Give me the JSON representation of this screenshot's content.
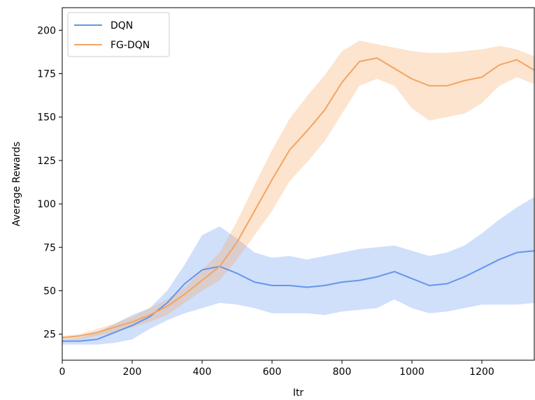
{
  "chart_data": {
    "type": "line",
    "xlabel": "Itr",
    "ylabel": "Average Rewards",
    "xlim": [
      0,
      1350
    ],
    "ylim": [
      10,
      213
    ],
    "xticks": [
      0,
      200,
      400,
      600,
      800,
      1000,
      1200
    ],
    "yticks": [
      25,
      50,
      75,
      100,
      125,
      150,
      175,
      200
    ],
    "grid": false,
    "legend_position": "top-left",
    "series": [
      {
        "name": "DQN",
        "color": "#6495ED",
        "band_color": "#6495ED",
        "x": [
          0,
          50,
          100,
          150,
          200,
          250,
          300,
          350,
          400,
          450,
          500,
          550,
          600,
          650,
          700,
          750,
          800,
          850,
          900,
          950,
          1000,
          1050,
          1100,
          1150,
          1200,
          1250,
          1300,
          1350
        ],
        "mean": [
          21,
          21,
          22,
          26,
          30,
          35,
          43,
          54,
          62,
          64,
          60,
          55,
          53,
          53,
          52,
          53,
          55,
          56,
          58,
          61,
          57,
          53,
          54,
          58,
          63,
          68,
          72,
          73
        ],
        "upper": [
          22,
          23,
          26,
          31,
          36,
          40,
          50,
          65,
          82,
          87,
          80,
          72,
          69,
          70,
          68,
          70,
          72,
          74,
          75,
          76,
          73,
          70,
          72,
          76,
          83,
          91,
          98,
          104
        ],
        "lower": [
          19,
          19,
          19,
          20,
          22,
          28,
          33,
          37,
          40,
          43,
          42,
          40,
          37,
          37,
          37,
          36,
          38,
          39,
          40,
          45,
          40,
          37,
          38,
          40,
          42,
          42,
          42,
          43
        ]
      },
      {
        "name": "FG-DQN",
        "color": "#F4A460",
        "band_color": "#F4A460",
        "x": [
          0,
          50,
          100,
          150,
          200,
          250,
          300,
          350,
          400,
          450,
          500,
          550,
          600,
          650,
          700,
          750,
          800,
          850,
          900,
          950,
          1000,
          1050,
          1100,
          1150,
          1200,
          1250,
          1300,
          1350
        ],
        "mean": [
          23,
          24,
          26,
          29,
          32,
          36,
          41,
          48,
          56,
          64,
          78,
          96,
          114,
          131,
          142,
          154,
          170,
          182,
          184,
          178,
          172,
          168,
          168,
          171,
          173,
          180,
          183,
          177
        ],
        "upper": [
          24,
          25,
          28,
          31,
          35,
          40,
          45,
          52,
          62,
          72,
          90,
          111,
          131,
          149,
          162,
          174,
          188,
          194,
          192,
          190,
          188,
          187,
          187,
          188,
          189,
          191,
          189,
          185
        ],
        "lower": [
          22,
          22,
          24,
          26,
          29,
          32,
          36,
          43,
          50,
          56,
          68,
          82,
          96,
          113,
          124,
          136,
          152,
          168,
          172,
          168,
          155,
          148,
          150,
          152,
          158,
          168,
          173,
          169
        ]
      }
    ]
  }
}
